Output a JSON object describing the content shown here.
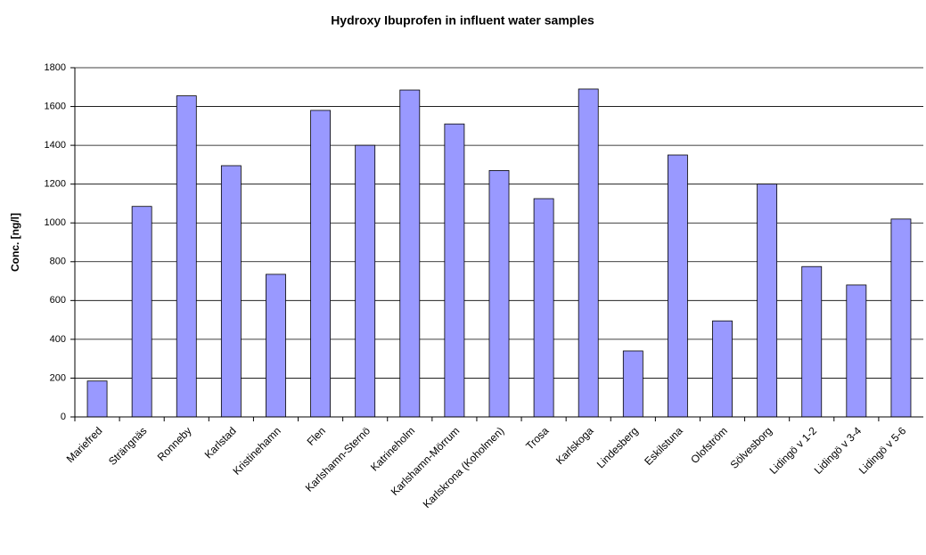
{
  "chart_data": {
    "type": "bar",
    "title": "Hydroxy Ibuprofen in influent water samples",
    "y_label": "Conc. [ng/l]",
    "categories": [
      "Mariefred",
      "Strängnäs",
      "Ronneby",
      "Karlstad",
      "Kristinehamn",
      "Flen",
      "Karlshamn-Sternö",
      "Katrineholm",
      "Karlshamn-Mörrum",
      "Karlskrona (Koholmen)",
      "Trosa",
      "Karlskoga",
      "Lindesberg",
      "Eskilstuna",
      "Olofström",
      "Sölvesborg",
      "Lidingö v 1-2",
      "Lidingö v 3-4",
      "Lidingö v 5-6"
    ],
    "values": [
      185,
      1085,
      1655,
      1295,
      735,
      1580,
      1400,
      1685,
      1510,
      1270,
      1125,
      1690,
      340,
      1350,
      495,
      1200,
      775,
      680,
      1020
    ],
    "color": "#9999ff",
    "ylim": [
      0,
      1800
    ],
    "yticks": [
      0,
      200,
      400,
      600,
      800,
      1000,
      1200,
      1400,
      1600,
      1800
    ],
    "grid": true
  }
}
